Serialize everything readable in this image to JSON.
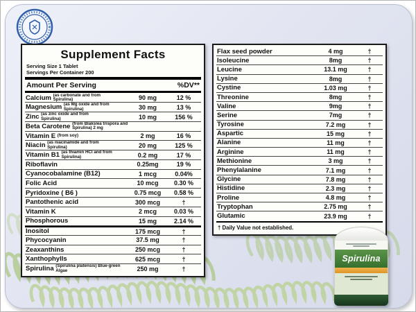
{
  "left_panel": {
    "title": "Supplement Facts",
    "serving_size": "Serving Size 1 Tablet",
    "servings_per_container": "Servings Per Container 200",
    "col_amount": "Amount Per Serving",
    "col_dv": "%DV**",
    "rows": [
      {
        "name": "Calcium",
        "note": "(as carbonate and from Spirulina)",
        "amount": "90 mg",
        "dv": "12 %"
      },
      {
        "name": "Magnesium",
        "note": "(as Mg oxide and from Spirulina)",
        "amount": "30 mg",
        "dv": "13 %"
      },
      {
        "name": "Zinc",
        "note": "(as zinc oxide and from Spirulina)",
        "amount": "10 mg",
        "dv": "156 %"
      },
      {
        "name": "Beta Carotene",
        "note": "(from Blakslea trispora and Spirulina) 2 mg",
        "amount": "",
        "dv": ""
      },
      {
        "name": "Vitamin E",
        "note": "(from soy)",
        "amount": "2 mg",
        "dv": "16 %"
      },
      {
        "name": "Niacin",
        "note": "(as niacinamide and from Spirulina)",
        "amount": "20 mg",
        "dv": "125 %"
      },
      {
        "name": "Vitamin B1",
        "note": "(as thiamin HCl and from Spirulina)",
        "amount": "0.2 mg",
        "dv": "17 %"
      },
      {
        "name": "Riboflavin",
        "note": "",
        "amount": "0.25mg",
        "dv": "19 %"
      },
      {
        "name": "Cyanocobalamine (B12)",
        "note": "",
        "amount": "1 mcg",
        "dv": "0.04%"
      },
      {
        "name": "Folic Acid",
        "note": "",
        "amount": "10 mcg",
        "dv": "0.30 %"
      },
      {
        "name": "Pyridoxine ( B6 )",
        "note": "",
        "amount": "0.75 mcg",
        "dv": "0.58 %"
      },
      {
        "name": "Pantothenic acid",
        "note": "",
        "amount": "300 mcg",
        "dv": "†"
      },
      {
        "name": "Vitamin K",
        "note": "",
        "amount": "2 mcg",
        "dv": "0.03 %"
      },
      {
        "name": "Phosphorous",
        "note": "",
        "amount": "15 mg",
        "dv": "2.14 %"
      },
      {
        "name": "Inositol",
        "note": "",
        "amount": "175 mcg",
        "dv": "†",
        "css": "thick-top"
      },
      {
        "name": "Phycocyanin",
        "note": "",
        "amount": "37.5 mg",
        "dv": "†"
      },
      {
        "name": "Zeaxanthins",
        "note": "",
        "amount": "250 mcg",
        "dv": "†"
      },
      {
        "name": "Xanthophylls",
        "note": "",
        "amount": "625 mcg",
        "dv": "†"
      },
      {
        "name": "Spirulina",
        "note": "(Spirulina platensis) Blue-green Algae",
        "amount": "250 mg",
        "dv": "†"
      }
    ]
  },
  "right_panel": {
    "rows": [
      {
        "name": "Flax seed powder",
        "amount": "4 mg",
        "dv": "†"
      },
      {
        "name": "Isoleucine",
        "amount": "8mg",
        "dv": "†"
      },
      {
        "name": "Leucine",
        "amount": "13.1 mg",
        "dv": "†"
      },
      {
        "name": "Lysine",
        "amount": "8mg",
        "dv": "†"
      },
      {
        "name": "Cystine",
        "amount": "1.03 mg",
        "dv": "†"
      },
      {
        "name": "Threonine",
        "amount": "8mg",
        "dv": "†"
      },
      {
        "name": "Valine",
        "amount": "9mg",
        "dv": "†"
      },
      {
        "name": "Serine",
        "amount": "7mg",
        "dv": "†"
      },
      {
        "name": "Tyrosine",
        "amount": "7.2 mg",
        "dv": "†"
      },
      {
        "name": "Aspartic",
        "amount": "15 mg",
        "dv": "†"
      },
      {
        "name": "Alanine",
        "amount": "11 mg",
        "dv": "†"
      },
      {
        "name": "Arginine",
        "amount": "11 mg",
        "dv": "†"
      },
      {
        "name": "Methionine",
        "amount": "3 mg",
        "dv": "†"
      },
      {
        "name": "Phenylalanine",
        "amount": "7.1 mg",
        "dv": "†"
      },
      {
        "name": "Glycine",
        "amount": "7.8 mg",
        "dv": "†"
      },
      {
        "name": "Histidine",
        "amount": "2.3 mg",
        "dv": "†"
      },
      {
        "name": "Proline",
        "amount": "4.8 mg",
        "dv": "†"
      },
      {
        "name": "Tryptophan",
        "amount": "2.75 mg",
        "dv": "†"
      },
      {
        "name": "Glutamic",
        "amount": "23.9 mg",
        "dv": "†"
      }
    ],
    "footnote": "† Daily Value not established."
  },
  "bottle": {
    "label_title": "Spirulina"
  },
  "colors": {
    "card_background": "#e2e5f1",
    "coil_green": "#a6c47c",
    "label_green": "#3c7a33",
    "label_orange": "#e9a83c",
    "seal_blue": "#2f5fa8"
  }
}
